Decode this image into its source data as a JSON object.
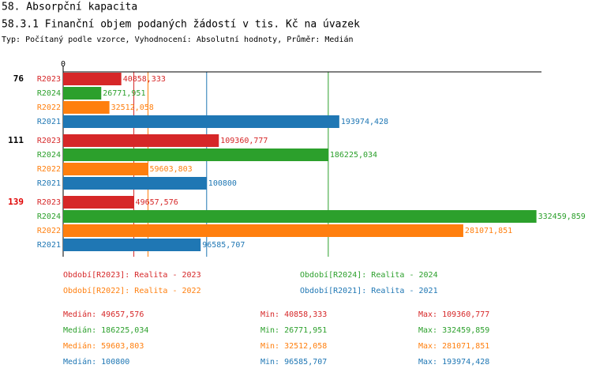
{
  "chart_data": {
    "type": "bar",
    "title": "58. Absorpční kapacita",
    "subtitle": "58.3.1 Finanční objem podaných žádostí v tis. Kč na úvazek",
    "description": "Typ: Počítaný podle vzorce, Vyhodnocení: Absolutní hodnoty, Průměr: Medián",
    "orientation": "horizontal",
    "categories": [
      "76",
      "111",
      "139"
    ],
    "category_colors": [
      "#000000",
      "#000000",
      "#e00000"
    ],
    "xlim": [
      0,
      336000
    ],
    "xticks": [
      0
    ],
    "series": [
      {
        "name": "R2023",
        "color": "#d62728",
        "legend": "Období[R2023]: Realita - 2023",
        "values": [
          40858.333,
          109360.777,
          49657.576
        ],
        "value_labels": [
          "40858,333",
          "109360,777",
          "49657,576"
        ],
        "stats": {
          "median": {
            "value": 49657.576,
            "label": "Medián: 49657,576"
          },
          "min": {
            "value": 40858.333,
            "label": "Min: 40858,333"
          },
          "max": {
            "value": 109360.777,
            "label": "Max: 109360,777"
          }
        }
      },
      {
        "name": "R2024",
        "color": "#2ca02c",
        "legend": "Období[R2024]: Realita - 2024",
        "values": [
          26771.951,
          186225.034,
          332459.859
        ],
        "value_labels": [
          "26771,951",
          "186225,034",
          "332459,859"
        ],
        "stats": {
          "median": {
            "value": 186225.034,
            "label": "Medián: 186225,034"
          },
          "min": {
            "value": 26771.951,
            "label": "Min: 26771,951"
          },
          "max": {
            "value": 332459.859,
            "label": "Max: 332459,859"
          }
        }
      },
      {
        "name": "R2022",
        "color": "#ff7f0e",
        "legend": "Období[R2022]: Realita - 2022",
        "values": [
          32512.058,
          59603.803,
          281071.851
        ],
        "value_labels": [
          "32512,058",
          "59603,803",
          "281071,851"
        ],
        "stats": {
          "median": {
            "value": 59603.803,
            "label": "Medián: 59603,803"
          },
          "min": {
            "value": 32512.058,
            "label": "Min: 32512,058"
          },
          "max": {
            "value": 281071.851,
            "label": "Max: 281071,851"
          }
        }
      },
      {
        "name": "R2021",
        "color": "#1f77b4",
        "legend": "Období[R2021]: Realita - 2021",
        "values": [
          193974.428,
          100800,
          96585.707
        ],
        "value_labels": [
          "193974,428",
          "100800",
          "96585,707"
        ],
        "stats": {
          "median": {
            "value": 100800,
            "label": "Medián: 100800"
          },
          "min": {
            "value": 96585.707,
            "label": "Min: 96585,707"
          },
          "max": {
            "value": 193974.428,
            "label": "Max: 193974,428"
          }
        }
      }
    ]
  }
}
